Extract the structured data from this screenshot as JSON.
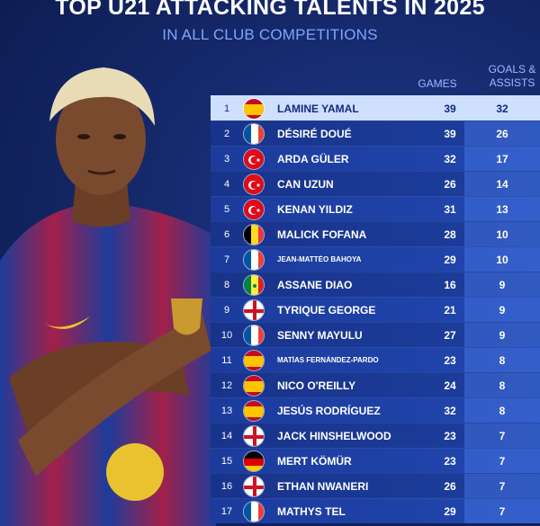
{
  "header": {
    "title": "TOP U21 ATTACKING TALENTS IN 2025",
    "subtitle": "IN ALL CLUB COMPETITIONS"
  },
  "columns": {
    "games": "GAMES",
    "ga_line1": "GOALS &",
    "ga_line2": "ASSISTS"
  },
  "colors": {
    "accent": "#7fa6ff",
    "highlight_row": "#cfe0ff"
  },
  "rows": [
    {
      "rank": "1",
      "flag": "spain",
      "name": "LAMINE YAMAL",
      "games": "39",
      "ga": "32"
    },
    {
      "rank": "2",
      "flag": "france",
      "name": "DÉSIRÉ DOUÉ",
      "games": "39",
      "ga": "26"
    },
    {
      "rank": "3",
      "flag": "turkey",
      "name": "ARDA GÜLER",
      "games": "32",
      "ga": "17"
    },
    {
      "rank": "4",
      "flag": "turkey",
      "name": "CAN UZUN",
      "games": "26",
      "ga": "14"
    },
    {
      "rank": "5",
      "flag": "turkey",
      "name": "KENAN YILDIZ",
      "games": "31",
      "ga": "13"
    },
    {
      "rank": "6",
      "flag": "belgium",
      "name": "MALICK FOFANA",
      "games": "28",
      "ga": "10"
    },
    {
      "rank": "7",
      "flag": "france",
      "name": "JEAN-MATTÉO BAHOYA",
      "games": "29",
      "ga": "10"
    },
    {
      "rank": "8",
      "flag": "senegal",
      "name": "ASSANE DIAO",
      "games": "16",
      "ga": "9"
    },
    {
      "rank": "9",
      "flag": "england",
      "name": "TYRIQUE GEORGE",
      "games": "21",
      "ga": "9"
    },
    {
      "rank": "10",
      "flag": "france",
      "name": "SENNY MAYULU",
      "games": "27",
      "ga": "9"
    },
    {
      "rank": "11",
      "flag": "spain",
      "name": "MATÍAS FERNÁNDEZ-PARDO",
      "games": "23",
      "ga": "8"
    },
    {
      "rank": "12",
      "flag": "spain",
      "name": "NICO O'REILLY",
      "games": "24",
      "ga": "8"
    },
    {
      "rank": "13",
      "flag": "spain",
      "name": "JESÚS RODRÍGUEZ",
      "games": "32",
      "ga": "8"
    },
    {
      "rank": "14",
      "flag": "england",
      "name": "JACK HINSHELWOOD",
      "games": "23",
      "ga": "7"
    },
    {
      "rank": "15",
      "flag": "germany",
      "name": "MERT KÖMÜR",
      "games": "23",
      "ga": "7"
    },
    {
      "rank": "16",
      "flag": "england",
      "name": "ETHAN NWANERI",
      "games": "26",
      "ga": "7"
    },
    {
      "rank": "17",
      "flag": "france",
      "name": "MATHYS TEL",
      "games": "29",
      "ga": "7"
    }
  ]
}
